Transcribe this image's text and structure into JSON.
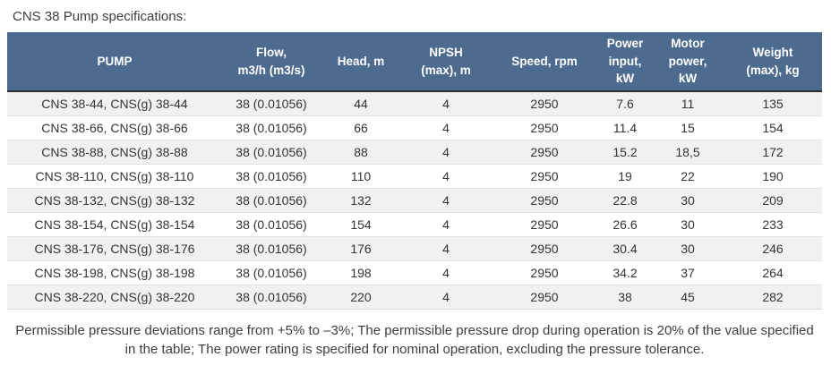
{
  "title": "CNS 38 Pump specifications:",
  "table": {
    "columns": [
      {
        "key": "pump",
        "label": "PUMP"
      },
      {
        "key": "flow",
        "label": "Flow,\nm3/h (m3/s)"
      },
      {
        "key": "head",
        "label": "Head, m"
      },
      {
        "key": "npsh",
        "label": "NPSH\n(max), m"
      },
      {
        "key": "speed",
        "label": "Speed, rpm"
      },
      {
        "key": "power-input",
        "label": "Power\ninput,\nkW"
      },
      {
        "key": "motor-power",
        "label": "Motor\npower,\nkW"
      },
      {
        "key": "weight",
        "label": "Weight\n(max), kg"
      }
    ],
    "rows": [
      [
        "CNS 38-44, CNS(g) 38-44",
        "38 (0.01056)",
        "44",
        "4",
        "2950",
        "7.6",
        "11",
        "135"
      ],
      [
        "CNS 38-66, CNS(g) 38-66",
        "38 (0.01056)",
        "66",
        "4",
        "2950",
        "11.4",
        "15",
        "154"
      ],
      [
        "CNS 38-88, CNS(g) 38-88",
        "38 (0.01056)",
        "88",
        "4",
        "2950",
        "15.2",
        "18,5",
        "172"
      ],
      [
        "CNS 38-110, CNS(g) 38-110",
        "38 (0.01056)",
        "110",
        "4",
        "2950",
        "19",
        "22",
        "190"
      ],
      [
        "CNS 38-132, CNS(g) 38-132",
        "38 (0.01056)",
        "132",
        "4",
        "2950",
        "22.8",
        "30",
        "209"
      ],
      [
        "CNS 38-154, CNS(g) 38-154",
        "38 (0.01056)",
        "154",
        "4",
        "2950",
        "26.6",
        "30",
        "233"
      ],
      [
        "CNS 38-176, CNS(g) 38-176",
        "38 (0.01056)",
        "176",
        "4",
        "2950",
        "30.4",
        "30",
        "246"
      ],
      [
        "CNS 38-198, CNS(g) 38-198",
        "38 (0.01056)",
        "198",
        "4",
        "2950",
        "34.2",
        "37",
        "264"
      ],
      [
        "CNS 38-220, CNS(g) 38-220",
        "38 (0.01056)",
        "220",
        "4",
        "2950",
        "38",
        "45",
        "282"
      ]
    ]
  },
  "footnote": "Permissible pressure deviations range from +5% to –3%; The permissible pressure drop during operation is 20% of the value specified in the table; The power rating is specified for nominal operation, excluding the pressure tolerance.",
  "colors": {
    "header_bg": "#4d6b8f",
    "header_text": "#ffffff",
    "header_border": "#2c2c2c",
    "row_alt": "#f1f1f1",
    "row_border": "#e2e2e2",
    "text": "#333333"
  }
}
